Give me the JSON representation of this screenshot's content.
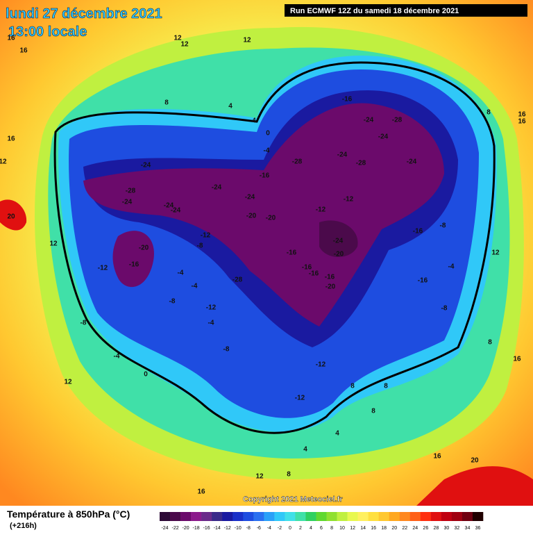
{
  "header": {
    "title": "lundi 27 décembre 2021",
    "subtitle": "13:00 locale",
    "run": "Run ECMWF 12Z du samedi 18 décembre 2021"
  },
  "map": {
    "labels": [
      -24,
      -28,
      -24,
      -24,
      -24,
      -24,
      -16,
      -28,
      -24,
      -28,
      -24,
      -28,
      -24,
      -24,
      -16,
      -12,
      -12,
      -24,
      -20,
      -20,
      -24,
      -20,
      -16,
      -16,
      -16,
      -16,
      -20,
      -28,
      -12,
      -8,
      -20,
      -16,
      -12,
      -4,
      -4,
      -8,
      -12,
      -4,
      -8,
      -8,
      -4,
      0,
      -12,
      -12,
      -16,
      -8,
      -4,
      -16,
      -8,
      12,
      16,
      16,
      12,
      20,
      12,
      12,
      8,
      4,
      4,
      0,
      -4,
      12,
      12,
      12,
      16,
      16,
      16,
      16,
      8,
      8,
      16,
      20,
      4,
      8,
      12,
      16,
      8,
      8,
      8,
      4
    ]
  },
  "footer": {
    "copyright": "Copyright 2021 Meteociel.fr",
    "variable": "Température à 850hPa (°C)",
    "lead": "(+216h)"
  },
  "legend": {
    "ticks": [
      -24,
      -22,
      -20,
      -18,
      -16,
      -14,
      -12,
      -10,
      -8,
      -6,
      -4,
      -2,
      0,
      2,
      4,
      6,
      8,
      10,
      12,
      14,
      16,
      18,
      20,
      22,
      24,
      26,
      28,
      30,
      32,
      34,
      36
    ],
    "colors": [
      "#2d0a36",
      "#4b0a4b",
      "#6b0a6b",
      "#8c1a8c",
      "#6a2a8a",
      "#3a2a8a",
      "#1a1aa0",
      "#1a30c8",
      "#1e4de0",
      "#2a70f0",
      "#2aa0f8",
      "#30c8f8",
      "#40e0e8",
      "#40e0a8",
      "#30d060",
      "#60d830",
      "#90e030",
      "#c0f040",
      "#e8f850",
      "#fff060",
      "#ffe040",
      "#ffc830",
      "#ffa820",
      "#ff8820",
      "#ff6018",
      "#ff3010",
      "#e01010",
      "#c00010",
      "#a00010",
      "#700010",
      "#200000"
    ]
  }
}
